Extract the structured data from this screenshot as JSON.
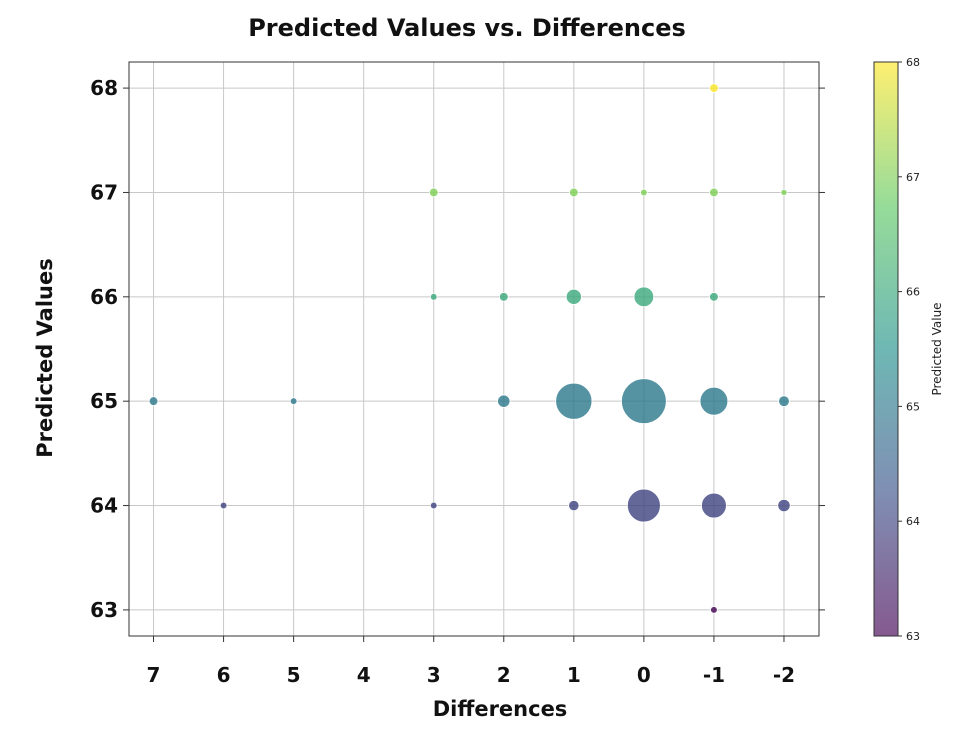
{
  "chart_data": {
    "type": "scatter",
    "title": "Predicted Values vs. Differences",
    "xlabel": "Differences",
    "ylabel": "Predicted Values",
    "x_inverted": true,
    "xlim": [
      7.35,
      -2.5
    ],
    "ylim": [
      62.75,
      68.25
    ],
    "x_ticks": [
      7,
      6,
      5,
      4,
      3,
      2,
      1,
      0,
      -1,
      -2
    ],
    "y_ticks": [
      63,
      64,
      65,
      66,
      67,
      68
    ],
    "grid": true,
    "colorbar": {
      "label": "Predicted Value",
      "range": [
        63,
        68
      ],
      "ticks": [
        63,
        64,
        65,
        66,
        67,
        68
      ],
      "colormap": "viridis",
      "alpha": 0.65
    },
    "points": [
      {
        "x": -1,
        "y": 68,
        "size": 1
      },
      {
        "x": 3,
        "y": 67,
        "size": 1
      },
      {
        "x": 1,
        "y": 67,
        "size": 1
      },
      {
        "x": 0,
        "y": 67,
        "size": 0.6
      },
      {
        "x": -1,
        "y": 67,
        "size": 1
      },
      {
        "x": -2,
        "y": 67,
        "size": 0.5
      },
      {
        "x": 3,
        "y": 66,
        "size": 0.6
      },
      {
        "x": 2,
        "y": 66,
        "size": 1
      },
      {
        "x": 1,
        "y": 66,
        "size": 3
      },
      {
        "x": 0,
        "y": 66,
        "size": 5
      },
      {
        "x": -1,
        "y": 66,
        "size": 1
      },
      {
        "x": 7,
        "y": 65,
        "size": 1
      },
      {
        "x": 5,
        "y": 65,
        "size": 0.6
      },
      {
        "x": 2,
        "y": 65,
        "size": 2
      },
      {
        "x": 1,
        "y": 65,
        "size": 17
      },
      {
        "x": 0,
        "y": 65,
        "size": 26
      },
      {
        "x": -1,
        "y": 65,
        "size": 10
      },
      {
        "x": -2,
        "y": 65,
        "size": 1.5
      },
      {
        "x": 6,
        "y": 64,
        "size": 0.6
      },
      {
        "x": 3,
        "y": 64,
        "size": 0.6
      },
      {
        "x": 1,
        "y": 64,
        "size": 1.4
      },
      {
        "x": 0,
        "y": 64,
        "size": 14
      },
      {
        "x": -1,
        "y": 64,
        "size": 8
      },
      {
        "x": -2,
        "y": 64,
        "size": 2
      },
      {
        "x": -1,
        "y": 63,
        "size": 0.6
      }
    ]
  }
}
